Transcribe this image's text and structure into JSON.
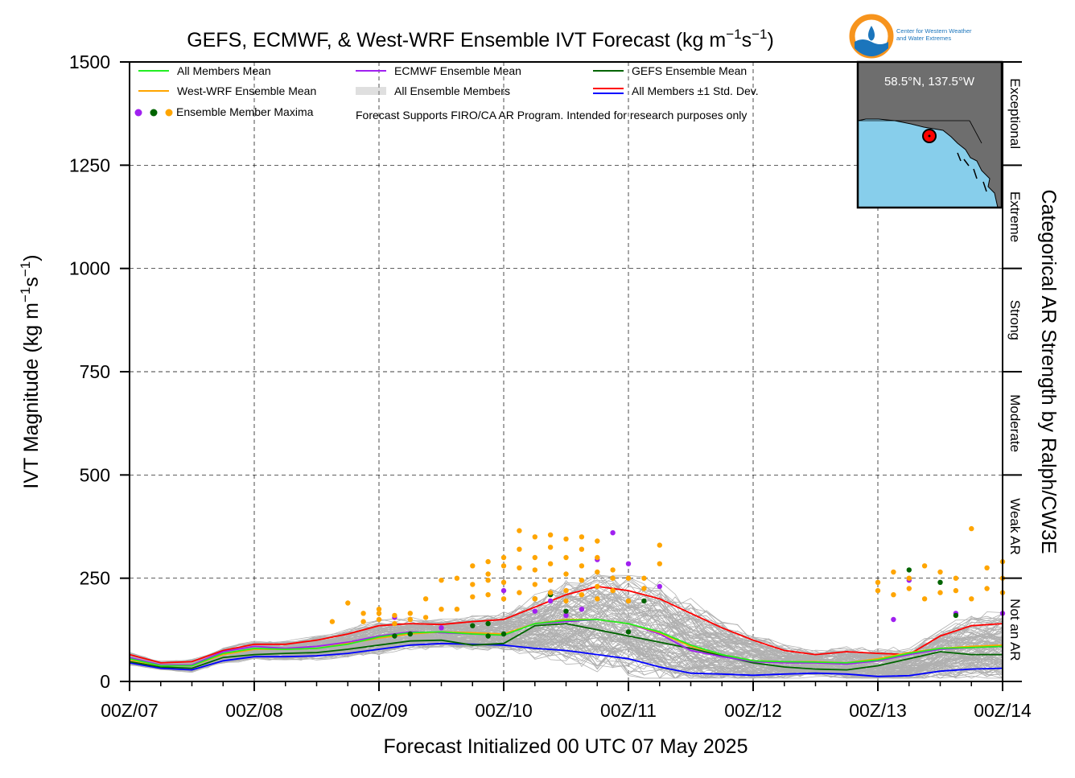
{
  "chart_data": {
    "type": "line",
    "title_parts": [
      "GEFS, ECMWF, & West-WRF Ensemble IVT Forecast (kg m",
      "−1",
      "s",
      "−1",
      ")"
    ],
    "xlabel": "Forecast Initialized 00 UTC 07 May 2025",
    "ylabel_parts": [
      "IVT Magnitude (kg m",
      "−1",
      "s",
      "−1",
      ")"
    ],
    "right_label": "Categorical AR Strength by Ralph/CW3E",
    "x_ticks": [
      "00Z/07",
      "00Z/08",
      "00Z/09",
      "00Z/10",
      "00Z/11",
      "00Z/12",
      "00Z/13",
      "00Z/14"
    ],
    "y_ticks": [
      "0",
      "250",
      "500",
      "750",
      "1000",
      "1250",
      "1500"
    ],
    "xlim": [
      0,
      168
    ],
    "ylim": [
      0,
      1500
    ],
    "grid": true,
    "categories": [
      {
        "label": "Not an AR",
        "range": [
          0,
          250
        ]
      },
      {
        "label": "Weak AR",
        "range": [
          250,
          500
        ]
      },
      {
        "label": "Moderate",
        "range": [
          500,
          750
        ]
      },
      {
        "label": "Strong",
        "range": [
          750,
          1000
        ]
      },
      {
        "label": "Extreme",
        "range": [
          1000,
          1250
        ]
      },
      {
        "label": "Exceptional",
        "range": [
          1250,
          1500
        ]
      }
    ],
    "legend": [
      {
        "label": "All Members Mean",
        "color": "#22ee22",
        "kind": "line"
      },
      {
        "label": "ECMWF Ensemble Mean",
        "color": "#a020f0",
        "kind": "line"
      },
      {
        "label": "GEFS Ensemble Mean",
        "color": "#006400",
        "kind": "line"
      },
      {
        "label": "West-WRF Ensemble Mean",
        "color": "#ffa500",
        "kind": "line"
      },
      {
        "label": "All Ensemble Members",
        "color": "#aaaaaa",
        "kind": "multiline"
      },
      {
        "label": "All Members ±1 Std. Dev.",
        "color": "#ff0000",
        "color2": "#0000ff",
        "kind": "dualline"
      },
      {
        "label": "Ensemble Member Maxima",
        "kind": "dots",
        "dot_colors": [
          "#a020f0",
          "#006400",
          "#ffa500"
        ]
      }
    ],
    "note": "Forecast Supports FIRO/CA AR Program. Intended for research purposes only",
    "inset": {
      "label": "58.5°N, 137.5°W",
      "land_color": "#6e6e6e",
      "water_color": "#87ceeb",
      "marker_color": "#ff0000"
    },
    "logo": {
      "org_line1": "Center for Western Weather",
      "org_line2": "and Water Extremes",
      "ring_color": "#f7941d",
      "wave_color": "#1b75bc"
    },
    "series": [
      {
        "name": "All Members ±1 Std. Dev.",
        "color": "#ff0000",
        "x": [
          0,
          6,
          12,
          18,
          24,
          30,
          36,
          42,
          48,
          54,
          60,
          66,
          72,
          78,
          84,
          90,
          96,
          102,
          108,
          114,
          120,
          126,
          132,
          138,
          144,
          150,
          156,
          162,
          168
        ],
        "values": [
          65,
          45,
          48,
          75,
          90,
          90,
          100,
          115,
          135,
          140,
          138,
          145,
          150,
          180,
          210,
          230,
          220,
          200,
          165,
          130,
          100,
          75,
          65,
          72,
          68,
          65,
          110,
          135,
          140
        ]
      },
      {
        "name": "All Members ±1 Std. Dev.",
        "color": "#0000ff",
        "x": [
          0,
          6,
          12,
          18,
          24,
          30,
          36,
          42,
          48,
          54,
          60,
          66,
          72,
          78,
          84,
          90,
          96,
          102,
          108,
          114,
          120,
          126,
          132,
          138,
          144,
          150,
          156,
          162,
          168
        ],
        "values": [
          45,
          32,
          28,
          50,
          60,
          60,
          62,
          68,
          78,
          88,
          92,
          90,
          88,
          80,
          75,
          65,
          55,
          35,
          20,
          18,
          15,
          18,
          20,
          18,
          12,
          14,
          25,
          30,
          32
        ]
      },
      {
        "name": "GEFS Ensemble Mean",
        "color": "#006400",
        "x": [
          0,
          6,
          12,
          18,
          24,
          30,
          36,
          42,
          48,
          54,
          60,
          66,
          72,
          78,
          84,
          90,
          96,
          102,
          108,
          114,
          120,
          126,
          132,
          138,
          144,
          150,
          156,
          162,
          168
        ],
        "values": [
          48,
          35,
          32,
          58,
          65,
          68,
          70,
          78,
          88,
          98,
          100,
          88,
          92,
          135,
          140,
          125,
          110,
          95,
          80,
          62,
          45,
          35,
          30,
          28,
          38,
          55,
          72,
          65,
          65
        ]
      },
      {
        "name": "ECMWF Ensemble Mean",
        "color": "#a020f0",
        "x": [
          0,
          6,
          12,
          18,
          24,
          30,
          36,
          42,
          48,
          54,
          60,
          66,
          72,
          78,
          84,
          90,
          96,
          102,
          108,
          114,
          120,
          126,
          132,
          138,
          144,
          150,
          156,
          162,
          168
        ],
        "values": [
          58,
          40,
          40,
          72,
          85,
          80,
          85,
          95,
          110,
          120,
          118,
          115,
          112,
          140,
          145,
          150,
          140,
          115,
          75,
          60,
          48,
          45,
          45,
          42,
          50,
          65,
          78,
          82,
          85
        ]
      },
      {
        "name": "West-WRF Ensemble Mean",
        "color": "#ffa500",
        "x": [
          0,
          6,
          12,
          18,
          24,
          30,
          36,
          42,
          48,
          54,
          60,
          66,
          72,
          78,
          84,
          90,
          96,
          102,
          108,
          114,
          120,
          126,
          132,
          138,
          144,
          150,
          156,
          162,
          168
        ],
        "values": [
          52,
          38,
          38,
          65,
          78,
          78,
          80,
          92,
          105,
          115,
          120,
          118,
          115,
          140,
          150,
          150,
          140,
          118,
          85,
          65,
          50,
          48,
          48,
          45,
          55,
          70,
          80,
          85,
          88
        ]
      },
      {
        "name": "All Members Mean",
        "color": "#22ee22",
        "x": [
          0,
          6,
          12,
          18,
          24,
          30,
          36,
          42,
          48,
          54,
          60,
          66,
          72,
          78,
          84,
          90,
          96,
          102,
          108,
          114,
          120,
          126,
          132,
          138,
          144,
          150,
          156,
          162,
          168
        ],
        "values": [
          55,
          38,
          38,
          68,
          80,
          78,
          80,
          90,
          108,
          118,
          120,
          115,
          112,
          140,
          148,
          150,
          140,
          120,
          88,
          65,
          50,
          48,
          47,
          45,
          52,
          68,
          80,
          82,
          85
        ]
      }
    ],
    "maxima": {
      "orange": [
        [
          39,
          145
        ],
        [
          42,
          190
        ],
        [
          45,
          145
        ],
        [
          45,
          165
        ],
        [
          48,
          150
        ],
        [
          48,
          165
        ],
        [
          48,
          175
        ],
        [
          51,
          160
        ],
        [
          51,
          140
        ],
        [
          54,
          165
        ],
        [
          54,
          150
        ],
        [
          57,
          155
        ],
        [
          57,
          200
        ],
        [
          60,
          245
        ],
        [
          60,
          175
        ],
        [
          63,
          250
        ],
        [
          63,
          175
        ],
        [
          66,
          205
        ],
        [
          66,
          235
        ],
        [
          66,
          280
        ],
        [
          69,
          210
        ],
        [
          69,
          245
        ],
        [
          69,
          260
        ],
        [
          69,
          290
        ],
        [
          72,
          200
        ],
        [
          72,
          240
        ],
        [
          72,
          280
        ],
        [
          72,
          300
        ],
        [
          75,
          275
        ],
        [
          75,
          320
        ],
        [
          75,
          365
        ],
        [
          75,
          215
        ],
        [
          78,
          200
        ],
        [
          78,
          235
        ],
        [
          78,
          270
        ],
        [
          78,
          300
        ],
        [
          78,
          350
        ],
        [
          81,
          215
        ],
        [
          81,
          245
        ],
        [
          81,
          285
        ],
        [
          81,
          325
        ],
        [
          81,
          355
        ],
        [
          84,
          195
        ],
        [
          84,
          220
        ],
        [
          84,
          260
        ],
        [
          84,
          300
        ],
        [
          84,
          345
        ],
        [
          87,
          210
        ],
        [
          87,
          245
        ],
        [
          87,
          280
        ],
        [
          87,
          320
        ],
        [
          87,
          350
        ],
        [
          90,
          200
        ],
        [
          90,
          230
        ],
        [
          90,
          265
        ],
        [
          90,
          300
        ],
        [
          90,
          340
        ],
        [
          93,
          220
        ],
        [
          93,
          250
        ],
        [
          93,
          270
        ],
        [
          96,
          195
        ],
        [
          96,
          250
        ],
        [
          99,
          225
        ],
        [
          99,
          250
        ],
        [
          102,
          330
        ],
        [
          102,
          285
        ],
        [
          144,
          220
        ],
        [
          144,
          240
        ],
        [
          147,
          210
        ],
        [
          147,
          265
        ],
        [
          150,
          225
        ],
        [
          150,
          250
        ],
        [
          153,
          280
        ],
        [
          153,
          200
        ],
        [
          156,
          215
        ],
        [
          156,
          265
        ],
        [
          159,
          220
        ],
        [
          159,
          250
        ],
        [
          162,
          370
        ],
        [
          162,
          200
        ],
        [
          165,
          275
        ],
        [
          165,
          225
        ],
        [
          168,
          290
        ],
        [
          168,
          250
        ],
        [
          168,
          215
        ]
      ],
      "purple": [
        [
          51,
          155
        ],
        [
          60,
          130
        ],
        [
          72,
          220
        ],
        [
          78,
          170
        ],
        [
          81,
          195
        ],
        [
          84,
          160
        ],
        [
          87,
          175
        ],
        [
          90,
          295
        ],
        [
          93,
          360
        ],
        [
          96,
          285
        ],
        [
          102,
          230
        ],
        [
          147,
          150
        ],
        [
          150,
          245
        ],
        [
          159,
          165
        ],
        [
          168,
          165
        ]
      ],
      "green": [
        [
          51,
          110
        ],
        [
          54,
          115
        ],
        [
          66,
          135
        ],
        [
          69,
          140
        ],
        [
          69,
          110
        ],
        [
          72,
          115
        ],
        [
          78,
          200
        ],
        [
          81,
          210
        ],
        [
          84,
          170
        ],
        [
          96,
          120
        ],
        [
          99,
          195
        ],
        [
          150,
          270
        ],
        [
          156,
          240
        ],
        [
          159,
          160
        ]
      ]
    }
  }
}
